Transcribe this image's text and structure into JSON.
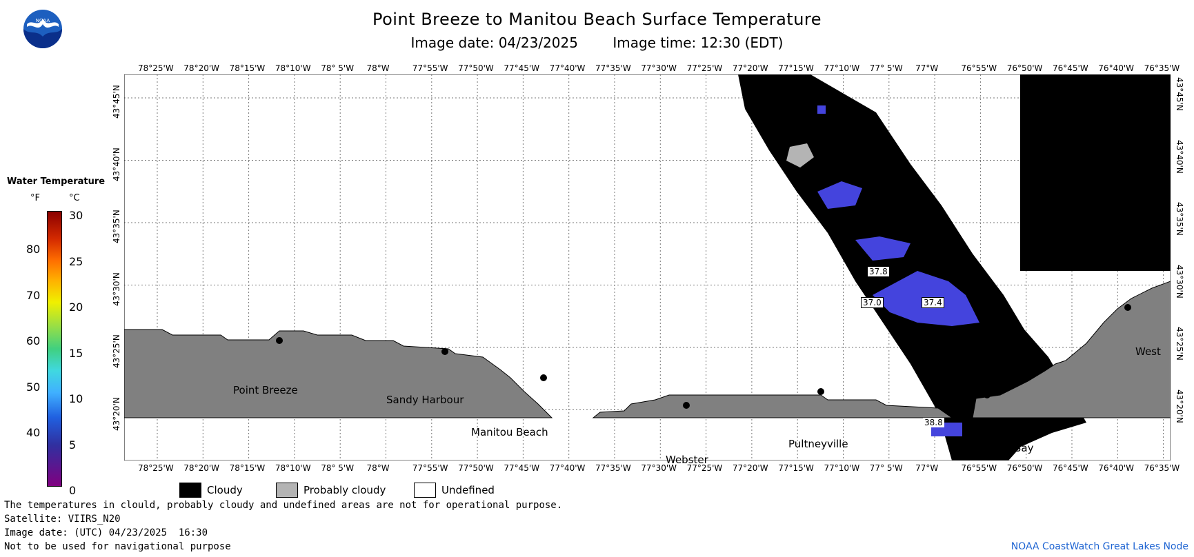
{
  "header": {
    "title": "Point Breeze to Manitou Beach Surface Temperature",
    "image_date": "Image date: 04/23/2025",
    "image_time": "Image time: 12:30 (EDT)"
  },
  "logo": {
    "text": "NOAA",
    "icon": "noaa-logo-icon"
  },
  "map": {
    "lon_labels": [
      "78°25'W",
      "78°20'W",
      "78°15'W",
      "78°10'W",
      "78° 5'W",
      "78°W",
      "77°55'W",
      "77°50'W",
      "77°45'W",
      "77°40'W",
      "77°35'W",
      "77°30'W",
      "77°25'W",
      "77°20'W",
      "77°15'W",
      "77°10'W",
      "77° 5'W",
      "77°W",
      "76°55'W",
      "76°50'W",
      "76°45'W",
      "76°40'W",
      "76°35'W"
    ],
    "lat_labels": [
      "43°45'N",
      "43°40'N",
      "43°35'N",
      "43°30'N",
      "43°25'N",
      "43°20'N"
    ],
    "places": [
      {
        "name": "Point Breeze"
      },
      {
        "name": "Sandy Harbour"
      },
      {
        "name": "Manitou Beach"
      },
      {
        "name": "Webster"
      },
      {
        "name": "Pultneyville"
      },
      {
        "name": "East Bay"
      },
      {
        "name": "West"
      }
    ],
    "temp_labels": [
      "37.8",
      "37.0",
      "37.4",
      "38.8"
    ],
    "colors": {
      "land": "#808080",
      "cloud": "#000000",
      "probably_cloudy": "#b4b4b4",
      "water_blue": "#4040d8",
      "grid": "#666666"
    }
  },
  "colorbar": {
    "title": "Water Temperature",
    "unit_f": "°F",
    "unit_c": "°C",
    "f_ticks": [
      "80",
      "70",
      "60",
      "50",
      "40"
    ],
    "c_ticks": [
      "30",
      "25",
      "20",
      "15",
      "10",
      "5",
      "0"
    ]
  },
  "legend": {
    "cloudy": "Cloudy",
    "probably_cloudy": "Probably cloudy",
    "undefined": "Undefined"
  },
  "footer": {
    "note": "The temperatures in clould, probably cloudy and undefined areas are not for operational purpose.",
    "satellite": "Satellite: VIIRS_N20",
    "utc_date": "Image date: (UTC) 04/23/2025  16:30",
    "nav": "Not to be used for navigational purpose",
    "credit": "NOAA CoastWatch Great Lakes Node"
  }
}
